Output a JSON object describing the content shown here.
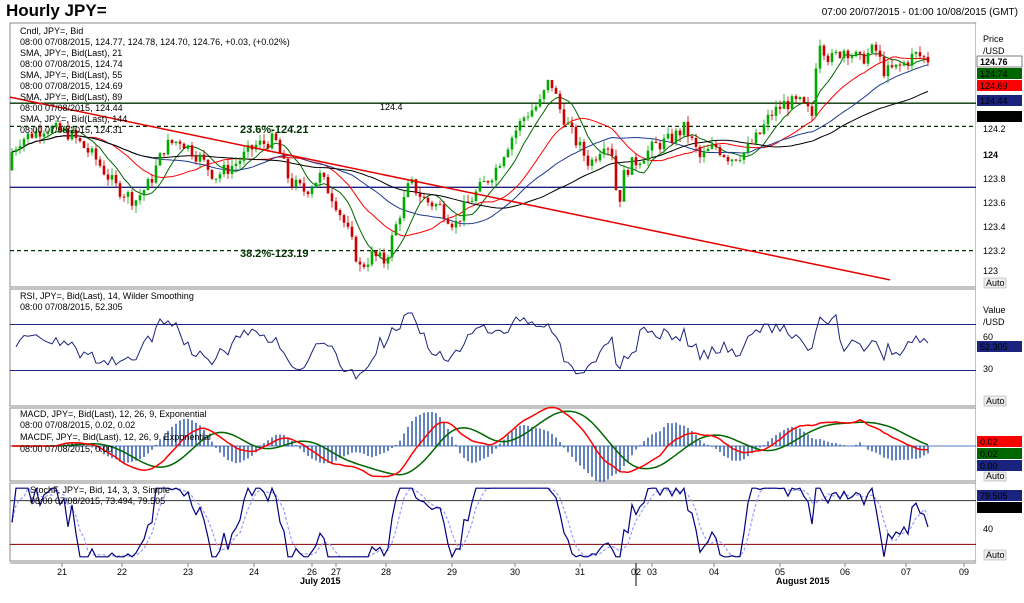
{
  "header": {
    "title": "Hourly JPY=",
    "range": "07:00 20/07/2015 - 01:00 10/08/2015 (GMT)"
  },
  "colors": {
    "candle_up": "#00aa00",
    "candle_down": "#cc0000",
    "sma21": "#006600",
    "sma55": "#ff0000",
    "sma89": "#1f3a93",
    "sma144": "#000000",
    "hline": "#1a237e",
    "trendline": "#e60000",
    "fib": "#003300",
    "rsi": "#1a237e",
    "macd": "#ff0000",
    "macd_signal": "#006600",
    "macd_hist": "#1f4fa8",
    "stoch_k": "#000080",
    "stoch_d": "#9999ff"
  },
  "panels": {
    "price": {
      "legend": [
        "Cndl, JPY=, Bid",
        "08:00 07/08/2015, 124.77, 124.78, 124.70, 124.76, +0.03, (+0.02%)",
        "SMA, JPY=, Bid(Last), 21",
        "08:00 07/08/2015, 124.74",
        "SMA, JPY=, Bid(Last), 55",
        "08:00 07/08/2015, 124.69",
        "SMA, JPY=, Bid(Last), 89",
        "08:00 07/08/2015, 124.44",
        "SMA, JPY=, Bid(Last), 144",
        "08:00 07/08/2015, 124.31"
      ],
      "axis_title": "Price",
      "axis_unit": "/USD",
      "ticks": [
        "124.2",
        "124",
        "123.8",
        "123.6",
        "123.4",
        "123.2",
        "123"
      ],
      "hline_label": "124.4",
      "fib_labels": [
        "23.6%-124.21",
        "38.2%-123.19"
      ],
      "badges": [
        "124.76",
        "124.74",
        "124.69",
        "124.44",
        "124.31"
      ],
      "auto": "Auto"
    },
    "rsi": {
      "legend": [
        "RSI, JPY=, Bid(Last), 14, Wilder Smoothing",
        "08:00 07/08/2015, 52.305"
      ],
      "axis_title": "Value",
      "axis_unit": "/USD",
      "ticks": [
        "60",
        "30"
      ],
      "badge": "52.305",
      "auto": "Auto"
    },
    "macd": {
      "legend": [
        "MACD, JPY=, Bid(Last), 12, 26, 9, Exponential",
        "08:00 07/08/2015, 0.02, 0.02",
        "MACDF, JPY=, Bid(Last), 12, 26, 9, Exponential",
        "08:00 07/08/2015, 0.00"
      ],
      "badges": [
        "0.02",
        "0.02",
        "0.00"
      ],
      "auto": "Auto"
    },
    "stoch": {
      "legend": [
        "StochF, JPY=, Bid, 14, 3, 3, Simple",
        "08:00 07/08/2015, 73.494, 79.505"
      ],
      "ticks": [
        "40"
      ],
      "badges": [
        "79.505",
        "73.494"
      ],
      "auto": "Auto"
    }
  },
  "x_axis": {
    "days": [
      "21",
      "22",
      "23",
      "24",
      "26",
      "27",
      "28",
      "29",
      "30",
      "31",
      "02",
      "03",
      "04",
      "05",
      "06",
      "07",
      "09"
    ],
    "months": [
      "July 2015",
      "August 2015"
    ]
  },
  "chart_data": {
    "type": "candlestick",
    "price": {
      "ylim": [
        122.9,
        125.05
      ],
      "hline": 123.71,
      "support_line": 124.4,
      "fib_levels": [
        124.21,
        123.19
      ],
      "trendline": [
        [
          0,
          124.45
        ],
        [
          880,
          122.95
        ]
      ],
      "path_points": [
        [
          0,
          123.85
        ],
        [
          20,
          124.1
        ],
        [
          45,
          124.2
        ],
        [
          70,
          124.15
        ],
        [
          95,
          123.95
        ],
        [
          115,
          123.72
        ],
        [
          135,
          123.6
        ],
        [
          150,
          123.75
        ],
        [
          165,
          124.05
        ],
        [
          180,
          124.1
        ],
        [
          200,
          123.95
        ],
        [
          215,
          123.8
        ],
        [
          235,
          123.9
        ],
        [
          255,
          124.05
        ],
        [
          275,
          124.1
        ],
        [
          290,
          123.75
        ],
        [
          305,
          123.68
        ],
        [
          320,
          123.8
        ],
        [
          335,
          123.6
        ],
        [
          350,
          123.3
        ],
        [
          360,
          123.05
        ],
        [
          372,
          123.15
        ],
        [
          385,
          123.1
        ],
        [
          400,
          123.5
        ],
        [
          410,
          123.75
        ],
        [
          425,
          123.6
        ],
        [
          440,
          123.55
        ],
        [
          455,
          123.4
        ],
        [
          465,
          123.55
        ],
        [
          480,
          123.7
        ],
        [
          495,
          123.85
        ],
        [
          510,
          124.1
        ],
        [
          525,
          124.3
        ],
        [
          540,
          124.4
        ],
        [
          550,
          124.6
        ],
        [
          560,
          124.35
        ],
        [
          575,
          124.1
        ],
        [
          590,
          123.9
        ],
        [
          605,
          124.1
        ],
        [
          612,
          124.0
        ],
        [
          618,
          123.55
        ],
        [
          625,
          123.85
        ],
        [
          640,
          123.95
        ],
        [
          655,
          124.05
        ],
        [
          670,
          124.1
        ],
        [
          685,
          124.2
        ],
        [
          700,
          123.95
        ],
        [
          715,
          124.05
        ],
        [
          730,
          123.95
        ],
        [
          745,
          124.0
        ],
        [
          760,
          124.15
        ],
        [
          770,
          124.3
        ],
        [
          785,
          124.4
        ],
        [
          800,
          124.4
        ],
        [
          812,
          124.3
        ],
        [
          818,
          124.95
        ],
        [
          830,
          124.75
        ],
        [
          845,
          124.85
        ],
        [
          860,
          124.75
        ],
        [
          875,
          124.85
        ],
        [
          885,
          124.65
        ],
        [
          900,
          124.7
        ],
        [
          915,
          124.8
        ],
        [
          928,
          124.76
        ]
      ]
    },
    "rsi": {
      "ylim": [
        0,
        100
      ],
      "levels": [
        70,
        30
      ],
      "last": 52.305
    },
    "macd": {
      "last_macd": 0.02,
      "last_signal": 0.02,
      "last_hist": 0.0
    },
    "stoch": {
      "ylim": [
        0,
        100
      ],
      "levels": [
        80,
        20
      ],
      "last_k": 73.494,
      "last_d": 79.505
    }
  }
}
